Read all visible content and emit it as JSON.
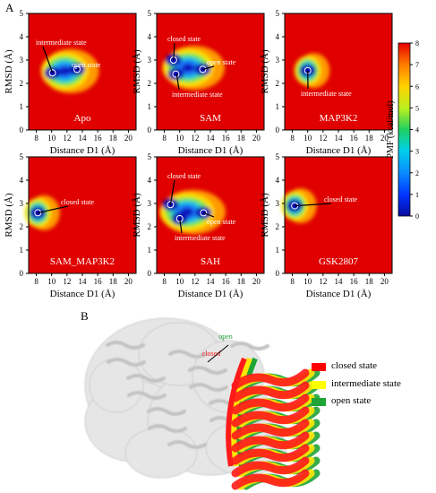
{
  "panel_labels": {
    "a": "A",
    "b": "B"
  },
  "colorbar": {
    "label": "PMF (kcal/mol)",
    "ticks": [
      "0",
      "1",
      "2",
      "3",
      "4",
      "5",
      "6",
      "7",
      "8"
    ]
  },
  "chart_data": [
    {
      "type": "heatmap",
      "title": "Apo",
      "xlabel": "Distance D1 (Å)",
      "ylabel": "RMSD (Å)",
      "xlim": [
        7,
        21
      ],
      "ylim": [
        0,
        5
      ],
      "xticks": [
        8,
        10,
        12,
        14,
        16,
        18,
        20
      ],
      "yticks": [
        0,
        1,
        2,
        3,
        4,
        5
      ],
      "basins": [
        {
          "x": 10.1,
          "y": 2.45
        },
        {
          "x": 13.3,
          "y": 2.6
        }
      ],
      "annotations": [
        {
          "text": "intermediate state",
          "x": 10.1,
          "y": 2.45
        },
        {
          "text": "open state",
          "x": 13.3,
          "y": 2.6
        }
      ]
    },
    {
      "type": "heatmap",
      "title": "SAM",
      "xlabel": "Distance D1 (Å)",
      "ylabel": "RMSD (Å)",
      "xlim": [
        7,
        21
      ],
      "ylim": [
        0,
        5
      ],
      "xticks": [
        8,
        10,
        12,
        14,
        16,
        18,
        20
      ],
      "yticks": [
        0,
        1,
        2,
        3,
        4,
        5
      ],
      "basins": [
        {
          "x": 9.2,
          "y": 3.0
        },
        {
          "x": 9.5,
          "y": 2.4
        },
        {
          "x": 13.0,
          "y": 2.6
        }
      ],
      "annotations": [
        {
          "text": "closed state",
          "x": 9.2,
          "y": 3.0
        },
        {
          "text": "open state",
          "x": 13.0,
          "y": 2.6
        },
        {
          "text": "intermediate state",
          "x": 9.6,
          "y": 2.4
        }
      ]
    },
    {
      "type": "heatmap",
      "title": "MAP3K2",
      "xlabel": "Distance D1 (Å)",
      "ylabel": "RMSD (Å)",
      "xlim": [
        7,
        21
      ],
      "ylim": [
        0,
        5
      ],
      "xticks": [
        8,
        10,
        12,
        14,
        16,
        18,
        20
      ],
      "yticks": [
        0,
        1,
        2,
        3,
        4,
        5
      ],
      "basins": [
        {
          "x": 10.0,
          "y": 2.55
        }
      ],
      "annotations": [
        {
          "text": "intermediate state",
          "x": 10.0,
          "y": 2.55
        }
      ]
    },
    {
      "type": "heatmap",
      "title": "SAM_MAP3K2",
      "xlabel": "Distance D1 (Å)",
      "ylabel": "RMSD (Å)",
      "xlim": [
        7,
        21
      ],
      "ylim": [
        0,
        5
      ],
      "xticks": [
        8,
        10,
        12,
        14,
        16,
        18,
        20
      ],
      "yticks": [
        0,
        1,
        2,
        3,
        4,
        5
      ],
      "basins": [
        {
          "x": 8.2,
          "y": 2.6
        }
      ],
      "annotations": [
        {
          "text": "closed state",
          "x": 8.2,
          "y": 2.6
        }
      ]
    },
    {
      "type": "heatmap",
      "title": "SAH",
      "xlabel": "Distance D1 (Å)",
      "ylabel": "RMSD (Å)",
      "xlim": [
        7,
        21
      ],
      "ylim": [
        0,
        5
      ],
      "xticks": [
        8,
        10,
        12,
        14,
        16,
        18,
        20
      ],
      "yticks": [
        0,
        1,
        2,
        3,
        4,
        5
      ],
      "basins": [
        {
          "x": 8.8,
          "y": 2.95
        },
        {
          "x": 10.0,
          "y": 2.35
        },
        {
          "x": 13.1,
          "y": 2.6
        }
      ],
      "annotations": [
        {
          "text": "closed state",
          "x": 8.8,
          "y": 2.95
        },
        {
          "text": "open state",
          "x": 13.1,
          "y": 2.6
        },
        {
          "text": "intermediate state",
          "x": 10.0,
          "y": 2.35
        }
      ]
    },
    {
      "type": "heatmap",
      "title": "GSK2807",
      "xlabel": "Distance D1 (Å)",
      "ylabel": "RMSD (Å)",
      "xlim": [
        7,
        21
      ],
      "ylim": [
        0,
        5
      ],
      "xticks": [
        8,
        10,
        12,
        14,
        16,
        18,
        20
      ],
      "yticks": [
        0,
        1,
        2,
        3,
        4,
        5
      ],
      "basins": [
        {
          "x": 8.3,
          "y": 2.9
        }
      ],
      "annotations": [
        {
          "text": "closed state",
          "x": 8.3,
          "y": 2.9
        }
      ]
    }
  ],
  "structure": {
    "labels": {
      "open": "open",
      "closed": "closed"
    },
    "legend": [
      {
        "text": "closed state",
        "color": "#ff0000"
      },
      {
        "text": "intermediate state",
        "color": "#ffff00"
      },
      {
        "text": "open state",
        "color": "#1fa437"
      }
    ]
  }
}
